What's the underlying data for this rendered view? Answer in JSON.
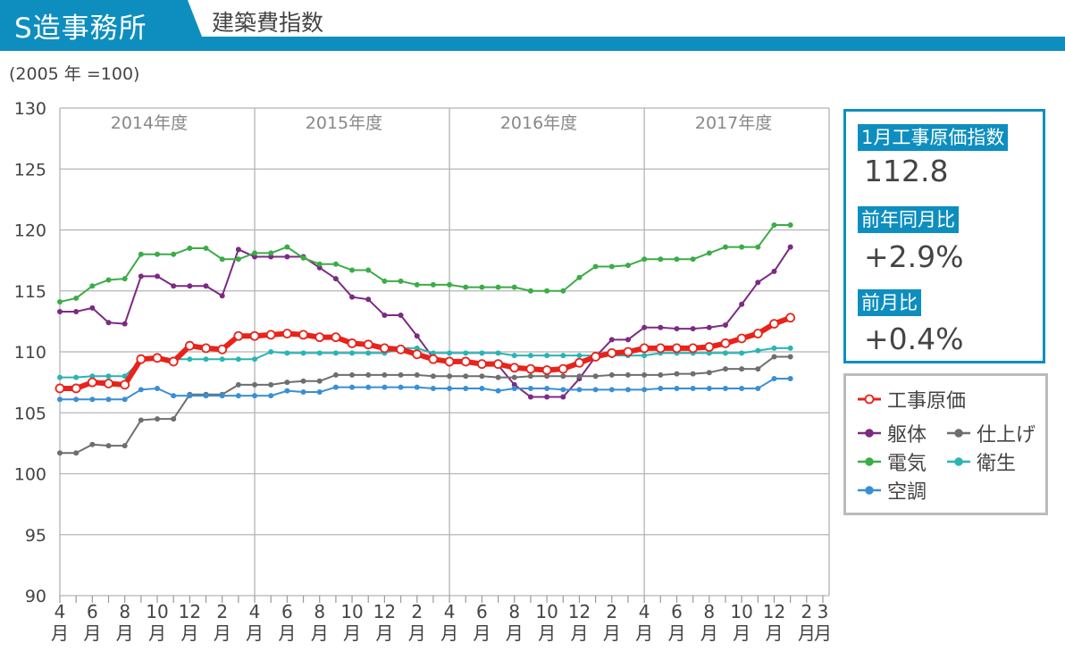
{
  "header": {
    "brand": "S造事務所",
    "title": "建築費指数"
  },
  "base_note": "(2005 年 =100)",
  "info": {
    "index_label": "1月工事原価指数",
    "index_value": "112.8",
    "yoy_label": "前年同月比",
    "yoy_value": "+2.9%",
    "mom_label": "前月比",
    "mom_value": "+0.4%"
  },
  "colors": {
    "accent": "#0e8ebf",
    "工事原価": "#e8231b",
    "躯体": "#7b2b82",
    "仕上げ": "#6e6e6e",
    "電気": "#3cac48",
    "衛生": "#2ab4b4",
    "空調": "#3a8fd4"
  },
  "chart_data": {
    "type": "line",
    "title": "建築費指数",
    "ylabel": "(2005 年 =100)",
    "ylim": [
      90,
      130
    ],
    "yticks": [
      "130",
      "125",
      "120",
      "115",
      "110",
      "105",
      "100",
      "95",
      "90"
    ],
    "fiscal_years": [
      "2014年度",
      "2015年度",
      "2016年度",
      "2017年度"
    ],
    "x_start": "2014-04",
    "x_end": "2018-03",
    "xtick_labels": [
      {
        "num": "4",
        "unit": "月"
      },
      {
        "num": "6",
        "unit": "月"
      },
      {
        "num": "8",
        "unit": "月"
      },
      {
        "num": "10",
        "unit": "月"
      },
      {
        "num": "12",
        "unit": "月"
      },
      {
        "num": "2",
        "unit": "月"
      },
      {
        "num": "4",
        "unit": "月"
      },
      {
        "num": "6",
        "unit": "月"
      },
      {
        "num": "8",
        "unit": "月"
      },
      {
        "num": "10",
        "unit": "月"
      },
      {
        "num": "12",
        "unit": "月"
      },
      {
        "num": "2",
        "unit": "月"
      },
      {
        "num": "4",
        "unit": "月"
      },
      {
        "num": "6",
        "unit": "月"
      },
      {
        "num": "8",
        "unit": "月"
      },
      {
        "num": "10",
        "unit": "月"
      },
      {
        "num": "12",
        "unit": "月"
      },
      {
        "num": "2",
        "unit": "月"
      },
      {
        "num": "4",
        "unit": "月"
      },
      {
        "num": "6",
        "unit": "月"
      },
      {
        "num": "8",
        "unit": "月"
      },
      {
        "num": "10",
        "unit": "月"
      },
      {
        "num": "12",
        "unit": "月"
      },
      {
        "num": "2",
        "unit": "月"
      },
      {
        "num": "3",
        "unit": "月"
      }
    ],
    "series": [
      {
        "name": "躯体",
        "values": [
          113.3,
          113.3,
          113.6,
          112.4,
          112.3,
          116.2,
          116.2,
          115.4,
          115.4,
          115.4,
          114.6,
          118.4,
          117.8,
          117.8,
          117.8,
          117.8,
          116.9,
          116.0,
          114.5,
          114.3,
          113.0,
          113.0,
          111.3,
          109.5,
          109.0,
          109.2,
          108.9,
          108.9,
          107.3,
          106.3,
          106.3,
          106.3,
          107.8,
          109.6,
          111.0,
          111.0,
          112.0,
          112.0,
          111.9,
          111.9,
          112.0,
          112.2,
          113.9,
          115.7,
          116.6,
          118.6
        ]
      },
      {
        "name": "仕上げ",
        "values": [
          101.7,
          101.7,
          102.4,
          102.3,
          102.3,
          104.4,
          104.5,
          104.5,
          106.5,
          106.5,
          106.5,
          107.3,
          107.3,
          107.3,
          107.5,
          107.6,
          107.6,
          108.1,
          108.1,
          108.1,
          108.1,
          108.1,
          108.1,
          108.0,
          108.0,
          108.0,
          108.0,
          107.9,
          107.9,
          108.0,
          108.0,
          108.0,
          108.0,
          108.0,
          108.1,
          108.1,
          108.1,
          108.1,
          108.2,
          108.2,
          108.3,
          108.6,
          108.6,
          108.6,
          109.6,
          109.6
        ]
      },
      {
        "name": "電気",
        "values": [
          114.1,
          114.4,
          115.4,
          115.9,
          116.0,
          118.0,
          118.0,
          118.0,
          118.5,
          118.5,
          117.6,
          117.6,
          118.1,
          118.1,
          118.6,
          117.7,
          117.2,
          117.2,
          116.7,
          116.7,
          115.8,
          115.8,
          115.5,
          115.5,
          115.5,
          115.3,
          115.3,
          115.3,
          115.3,
          115.0,
          115.0,
          115.0,
          116.1,
          117.0,
          117.0,
          117.1,
          117.6,
          117.6,
          117.6,
          117.6,
          118.1,
          118.6,
          118.6,
          118.6,
          120.4,
          120.4
        ]
      },
      {
        "name": "衛生",
        "values": [
          107.9,
          107.9,
          108.0,
          108.0,
          108.0,
          109.3,
          109.4,
          109.4,
          109.4,
          109.4,
          109.4,
          109.4,
          109.4,
          110.0,
          109.9,
          109.9,
          109.9,
          109.9,
          109.9,
          109.9,
          109.9,
          110.3,
          110.3,
          109.9,
          109.9,
          109.9,
          109.9,
          109.9,
          109.7,
          109.7,
          109.7,
          109.7,
          109.7,
          109.7,
          109.7,
          109.7,
          109.7,
          109.9,
          109.9,
          109.9,
          109.9,
          109.9,
          109.9,
          110.1,
          110.3,
          110.3
        ]
      },
      {
        "name": "空調",
        "values": [
          106.1,
          106.1,
          106.1,
          106.1,
          106.1,
          106.9,
          107.0,
          106.4,
          106.4,
          106.4,
          106.4,
          106.4,
          106.4,
          106.4,
          106.8,
          106.7,
          106.7,
          107.1,
          107.1,
          107.1,
          107.1,
          107.1,
          107.1,
          107.0,
          107.0,
          107.0,
          107.0,
          106.8,
          107.0,
          107.0,
          107.0,
          106.9,
          106.9,
          106.9,
          106.9,
          106.9,
          106.9,
          107.0,
          107.0,
          107.0,
          107.0,
          107.0,
          107.0,
          107.0,
          107.8,
          107.8
        ]
      },
      {
        "name": "工事原価",
        "values": [
          107.0,
          107.0,
          107.5,
          107.4,
          107.3,
          109.4,
          109.5,
          109.2,
          110.5,
          110.3,
          110.2,
          111.3,
          111.3,
          111.4,
          111.5,
          111.4,
          111.2,
          111.2,
          110.7,
          110.6,
          110.3,
          110.2,
          109.8,
          109.4,
          109.2,
          109.2,
          109.0,
          109.0,
          108.7,
          108.6,
          108.5,
          108.6,
          109.1,
          109.6,
          109.9,
          110.0,
          110.3,
          110.3,
          110.3,
          110.3,
          110.4,
          110.7,
          111.1,
          111.5,
          112.3,
          112.8
        ]
      }
    ],
    "legend": [
      "工事原価",
      "躯体",
      "仕上げ",
      "電気",
      "衛生",
      "空調"
    ],
    "legend_position": "right",
    "grid": true
  }
}
